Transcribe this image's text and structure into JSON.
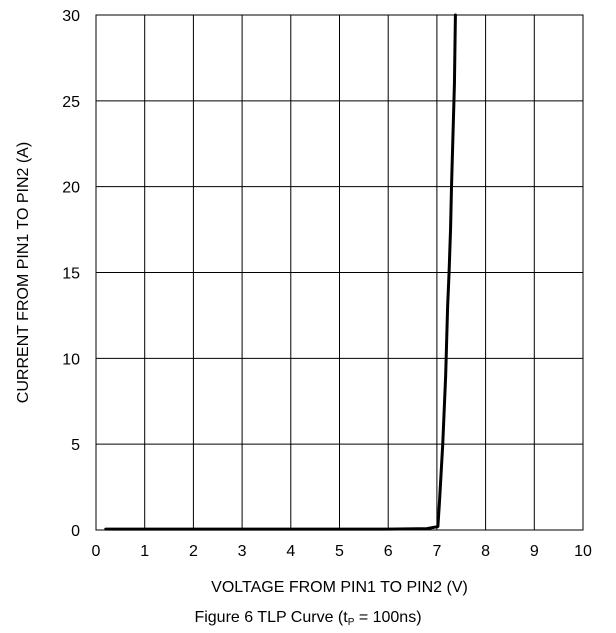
{
  "chart_data": {
    "type": "line",
    "title": "",
    "xlabel": "VOLTAGE FROM PIN1 TO PIN2 (V)",
    "ylabel": "CURRENT FROM PIN1 TO PIN2 (A)",
    "xlim": [
      0,
      10
    ],
    "ylim": [
      0,
      30
    ],
    "x_ticks": [
      "0",
      "1",
      "2",
      "3",
      "4",
      "5",
      "6",
      "7",
      "8",
      "9",
      "10"
    ],
    "y_ticks": [
      "0",
      "5",
      "10",
      "15",
      "20",
      "25",
      "30"
    ],
    "grid": true,
    "legend": "none",
    "series": [
      {
        "x": [
          0.2,
          1.0,
          2.0,
          3.0,
          4.0,
          5.0,
          6.0,
          6.8,
          7.02,
          7.05,
          7.08,
          7.12,
          7.15,
          7.18,
          7.2,
          7.22,
          7.25,
          7.28,
          7.3,
          7.33,
          7.36,
          7.38
        ],
        "y": [
          0.05,
          0.05,
          0.05,
          0.05,
          0.05,
          0.05,
          0.05,
          0.08,
          0.2,
          1.5,
          3.0,
          5.0,
          7.0,
          9.0,
          11.0,
          13.0,
          15.0,
          17.5,
          20.0,
          23.0,
          26.0,
          30.0
        ],
        "color": "#000000"
      }
    ]
  },
  "caption": {
    "prefix": "Figure 6 TLP Curve (t",
    "subscript": "P",
    "suffix": " = 100ns)"
  }
}
